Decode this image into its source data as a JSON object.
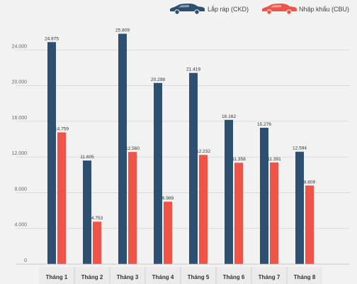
{
  "chart_data": {
    "type": "bar",
    "categories": [
      "Tháng 1",
      "Tháng 2",
      "Tháng 3",
      "Tháng 4",
      "Tháng 5",
      "Tháng 6",
      "Tháng 7",
      "Tháng 8"
    ],
    "series": [
      {
        "name": "Lắp ráp (CKD)",
        "color": "#2d5070",
        "icon": "car-icon",
        "values": [
          24875,
          11605,
          25809,
          20298,
          21419,
          16162,
          15276,
          12594
        ],
        "labels": [
          "24.875",
          "11.605",
          "25.809",
          "20.298",
          "21.419",
          "16.162",
          "15.276",
          "12.594"
        ]
      },
      {
        "name": "Nhập khẩu (CBU)",
        "color": "#ee5548",
        "icon": "car-icon",
        "values": [
          14759,
          4753,
          12560,
          6989,
          12232,
          11358,
          11391,
          8809
        ],
        "labels": [
          "14.759",
          "4.753",
          "12.560",
          "6.989",
          "12.232",
          "11.358",
          "11.391",
          "8.809"
        ]
      }
    ],
    "ylim": [
      0,
      28000
    ],
    "yticks": [
      0,
      4000,
      8000,
      12000,
      16000,
      20000,
      24000
    ],
    "ytick_labels": [
      "0",
      "4.000",
      "8.000",
      "12.000",
      "16.000",
      "20.000",
      "24.000"
    ],
    "grid": true,
    "legend_position": "top-right",
    "title": "",
    "xlabel": "",
    "ylabel": ""
  }
}
